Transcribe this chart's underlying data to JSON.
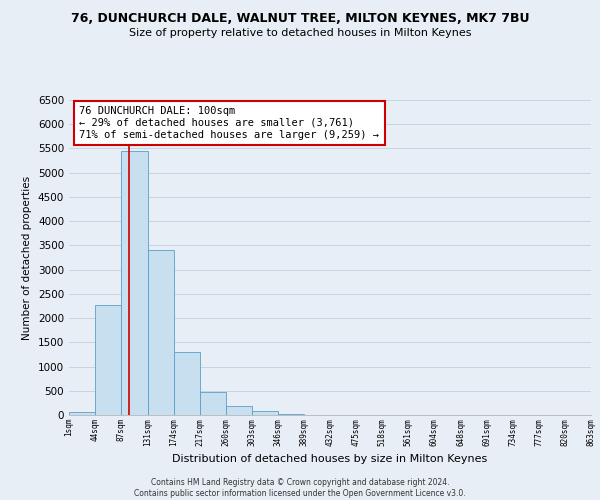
{
  "title": "76, DUNCHURCH DALE, WALNUT TREE, MILTON KEYNES, MK7 7BU",
  "subtitle": "Size of property relative to detached houses in Milton Keynes",
  "xlabel": "Distribution of detached houses by size in Milton Keynes",
  "ylabel": "Number of detached properties",
  "bar_color": "#c8dff0",
  "bar_edge_color": "#5a9ec9",
  "grid_color": "#c8d4e0",
  "background_color": "#e8eef5",
  "plot_bg_color": "#e8eef5",
  "property_line_color": "#cc0000",
  "annotation_line1": "76 DUNCHURCH DALE: 100sqm",
  "annotation_line2": "← 29% of detached houses are smaller (3,761)",
  "annotation_line3": "71% of semi-detached houses are larger (9,259) →",
  "annotation_box_color": "#ffffff",
  "annotation_box_edge": "#cc0000",
  "footer_text": "Contains HM Land Registry data © Crown copyright and database right 2024.\nContains public sector information licensed under the Open Government Licence v3.0.",
  "bin_edges": [
    1,
    44,
    87,
    131,
    174,
    217,
    260,
    303,
    346,
    389,
    432,
    475,
    518,
    561,
    604,
    648,
    691,
    734,
    777,
    820,
    863
  ],
  "bar_heights": [
    55,
    2280,
    5450,
    3400,
    1300,
    480,
    185,
    75,
    25,
    5,
    2,
    0,
    0,
    0,
    0,
    0,
    0,
    0,
    0,
    0
  ],
  "property_size": 100,
  "ylim": [
    0,
    6500
  ],
  "xlim": [
    1,
    863
  ],
  "yticks": [
    0,
    500,
    1000,
    1500,
    2000,
    2500,
    3000,
    3500,
    4000,
    4500,
    5000,
    5500,
    6000,
    6500
  ],
  "tick_labels": [
    "1sqm",
    "44sqm",
    "87sqm",
    "131sqm",
    "174sqm",
    "217sqm",
    "260sqm",
    "303sqm",
    "346sqm",
    "389sqm",
    "432sqm",
    "475sqm",
    "518sqm",
    "561sqm",
    "604sqm",
    "648sqm",
    "691sqm",
    "734sqm",
    "777sqm",
    "820sqm",
    "863sqm"
  ]
}
